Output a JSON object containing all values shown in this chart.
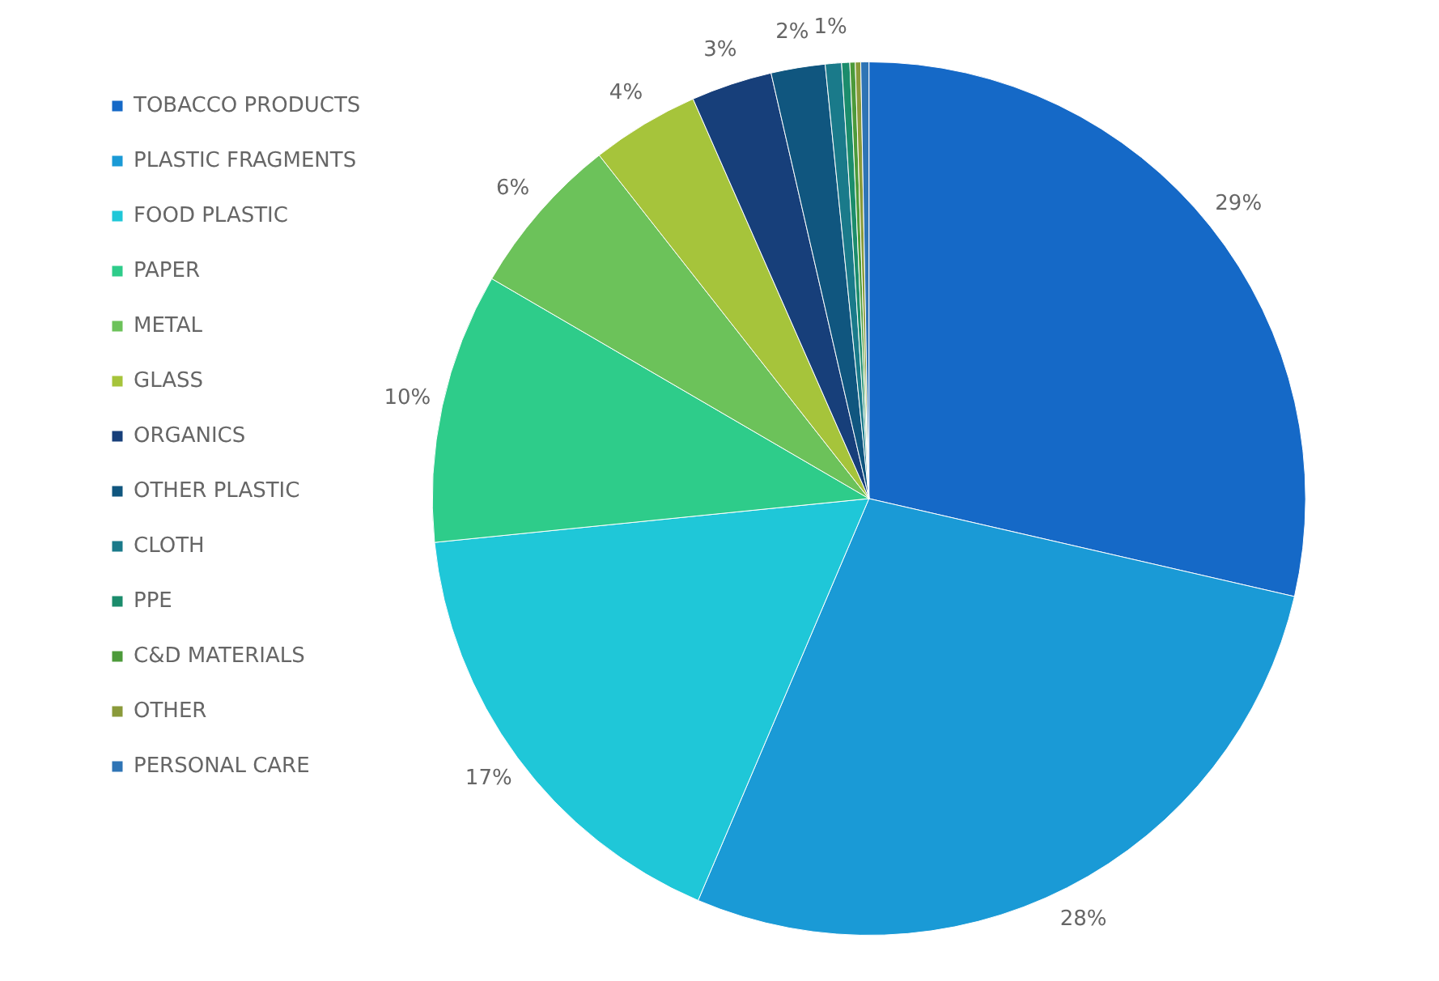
{
  "chart_data": {
    "type": "pie",
    "categories": [
      "TOBACCO PRODUCTS",
      "PLASTIC FRAGMENTS",
      "FOOD PLASTIC",
      "PAPER",
      "METAL",
      "GLASS",
      "ORGANICS",
      "OTHER PLASTIC",
      "CLOTH",
      "PPE",
      "C&D MATERIALS",
      "OTHER",
      "PERSONAL CARE"
    ],
    "values": [
      28.6,
      27.8,
      17,
      10,
      6,
      4,
      3,
      2,
      0.6,
      0.3,
      0.2,
      0.2,
      0.3
    ],
    "value_labels": [
      "29%",
      "28%",
      "17%",
      "10%",
      "6%",
      "4%",
      "3%",
      "2%",
      "1%",
      null,
      null,
      null,
      null
    ],
    "colors": [
      "#1569c7",
      "#1a9ad6",
      "#1fc7d8",
      "#2ecc8a",
      "#6cc25a",
      "#a6c43b",
      "#173f7a",
      "#10567f",
      "#1a7a8a",
      "#1b8c6c",
      "#4c9a3a",
      "#8a9a3a",
      "#2e74b5"
    ],
    "legend": "left"
  }
}
